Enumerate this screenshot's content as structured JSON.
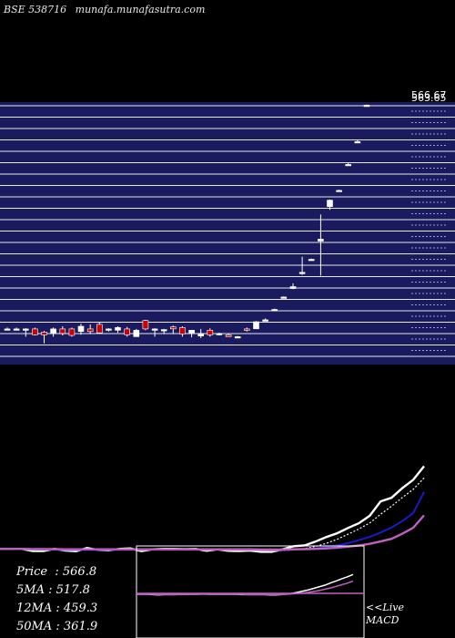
{
  "header": {
    "exchange": "BSE 538716",
    "site": "munafa.munafasutra.com"
  },
  "stats": [
    {
      "label": "Price",
      "value": "566.8"
    },
    {
      "label": "5MA",
      "value": "517.8"
    },
    {
      "label": "12MA",
      "value": "459.3"
    },
    {
      "label": "50MA",
      "value": "361.9"
    }
  ],
  "macd": {
    "line1": "<<Live",
    "line2": "MACD"
  },
  "colors": {
    "panel": "#1a1a5e",
    "grid": "#e6e6f0",
    "up": "#ffffff",
    "down": "#cc0000",
    "ma_white": "#ffffff",
    "ma_blue": "#1a1acc",
    "ma_purple": "#c060c0"
  },
  "chart_data": [
    {
      "type": "candlestick",
      "price_labels": [
        "566.67",
        "563.65"
      ],
      "ylim": [
        212,
        568
      ],
      "candles": [
        {
          "o": 222,
          "h": 224,
          "l": 220,
          "c": 222
        },
        {
          "o": 222,
          "h": 224,
          "l": 220,
          "c": 222
        },
        {
          "o": 222,
          "h": 223,
          "l": 210,
          "c": 222
        },
        {
          "o": 222,
          "h": 224,
          "l": 212,
          "c": 213
        },
        {
          "o": 217,
          "h": 219,
          "l": 200,
          "c": 213
        },
        {
          "o": 216,
          "h": 224,
          "l": 210,
          "c": 222
        },
        {
          "o": 222,
          "h": 226,
          "l": 212,
          "c": 215
        },
        {
          "o": 222,
          "h": 224,
          "l": 210,
          "c": 212
        },
        {
          "o": 218,
          "h": 230,
          "l": 213,
          "c": 226
        },
        {
          "o": 222,
          "h": 229,
          "l": 214,
          "c": 218
        },
        {
          "o": 229,
          "h": 232,
          "l": 215,
          "c": 216
        },
        {
          "o": 220,
          "h": 223,
          "l": 218,
          "c": 222
        },
        {
          "o": 220,
          "h": 226,
          "l": 216,
          "c": 224
        },
        {
          "o": 222,
          "h": 225,
          "l": 210,
          "c": 213
        },
        {
          "o": 210,
          "h": 222,
          "l": 210,
          "c": 220
        },
        {
          "o": 235,
          "h": 236,
          "l": 220,
          "c": 222
        },
        {
          "o": 220,
          "h": 223,
          "l": 210,
          "c": 222
        },
        {
          "o": 220,
          "h": 222,
          "l": 214,
          "c": 221
        },
        {
          "o": 225,
          "h": 227,
          "l": 214,
          "c": 222
        },
        {
          "o": 224,
          "h": 226,
          "l": 210,
          "c": 214
        },
        {
          "o": 216,
          "h": 219,
          "l": 209,
          "c": 220
        },
        {
          "o": 211,
          "h": 222,
          "l": 208,
          "c": 214
        },
        {
          "o": 220,
          "h": 223,
          "l": 210,
          "c": 213
        },
        {
          "o": 214,
          "h": 216,
          "l": 212,
          "c": 215
        },
        {
          "o": 213,
          "h": 215,
          "l": 210,
          "c": 210
        },
        {
          "o": 210,
          "h": 211,
          "l": 209,
          "c": 210
        },
        {
          "o": 222,
          "h": 224,
          "l": 218,
          "c": 220
        },
        {
          "o": 222,
          "h": 234,
          "l": 222,
          "c": 233
        },
        {
          "o": 236,
          "h": 238,
          "l": 234,
          "c": 236
        },
        {
          "o": 252,
          "h": 253,
          "l": 251,
          "c": 252
        },
        {
          "o": 270,
          "h": 272,
          "l": 269,
          "c": 271
        },
        {
          "o": 284,
          "h": 292,
          "l": 283,
          "c": 287
        },
        {
          "o": 307,
          "h": 333,
          "l": 305,
          "c": 309
        },
        {
          "o": 329,
          "h": 330,
          "l": 327,
          "c": 329
        },
        {
          "o": 357,
          "h": 398,
          "l": 304,
          "c": 360
        },
        {
          "o": 410,
          "h": 421,
          "l": 405,
          "c": 420
        },
        {
          "o": 435,
          "h": 436,
          "l": 434,
          "c": 435
        },
        {
          "o": 475,
          "h": 477,
          "l": 474,
          "c": 475
        },
        {
          "o": 510,
          "h": 512,
          "l": 509,
          "c": 510
        },
        {
          "o": 566,
          "h": 567,
          "l": 565,
          "c": 566
        }
      ]
    },
    {
      "type": "line",
      "series": [
        {
          "name": "Price",
          "values": [
            222,
            222,
            222,
            213,
            213,
            222,
            215,
            212,
            226,
            218,
            216,
            222,
            224,
            213,
            220,
            222,
            222,
            221,
            222,
            214,
            220,
            214,
            213,
            215,
            210,
            210,
            220,
            233,
            236,
            252,
            271,
            287,
            309,
            329,
            360,
            420,
            435,
            475,
            510,
            566.8
          ]
        },
        {
          "name": "5MA",
          "values": [
            222,
            222,
            221,
            220,
            218,
            218,
            217,
            216,
            218,
            219,
            218,
            219,
            220,
            219,
            219,
            219,
            220,
            220,
            221,
            220,
            220,
            219,
            218,
            216,
            215,
            214,
            215,
            218,
            223,
            232,
            245,
            262,
            283,
            305,
            330,
            366,
            400,
            436,
            470,
            517.8
          ]
        },
        {
          "name": "12MA",
          "values": [
            222,
            222,
            221,
            220,
            219,
            219,
            218,
            218,
            218,
            218,
            218,
            218,
            219,
            219,
            219,
            219,
            219,
            220,
            220,
            220,
            220,
            220,
            219,
            219,
            218,
            217,
            217,
            219,
            221,
            224,
            229,
            236,
            246,
            258,
            272,
            290,
            311,
            338,
            371,
            459.3
          ]
        },
        {
          "name": "50MA",
          "values": [
            222,
            222,
            222,
            221,
            221,
            221,
            220,
            220,
            220,
            220,
            220,
            220,
            220,
            220,
            220,
            220,
            220,
            220,
            220,
            220,
            220,
            220,
            220,
            220,
            219,
            219,
            219,
            220,
            221,
            222,
            224,
            227,
            231,
            236,
            243,
            253,
            264,
            285,
            310,
            361.9
          ]
        }
      ]
    },
    {
      "type": "line",
      "series": [
        {
          "name": "MACD",
          "values": [
            0,
            0,
            0,
            -1,
            -2,
            -1,
            -1,
            -1,
            0,
            0,
            0,
            0,
            1,
            0,
            0,
            0,
            0,
            0,
            0,
            -1,
            -1,
            -1,
            -1,
            -1,
            -2,
            -2,
            -1,
            1,
            3,
            6,
            10,
            14,
            19,
            24,
            29,
            36,
            42,
            49,
            55,
            62
          ]
        },
        {
          "name": "Signal",
          "values": [
            0,
            0,
            0,
            0,
            -1,
            -1,
            -1,
            -1,
            -1,
            0,
            0,
            0,
            0,
            0,
            0,
            0,
            0,
            0,
            0,
            0,
            -1,
            -1,
            -1,
            -1,
            -1,
            -1,
            -1,
            0,
            1,
            2,
            4,
            6,
            9,
            12,
            16,
            20,
            25,
            30,
            35,
            41
          ]
        }
      ]
    }
  ]
}
